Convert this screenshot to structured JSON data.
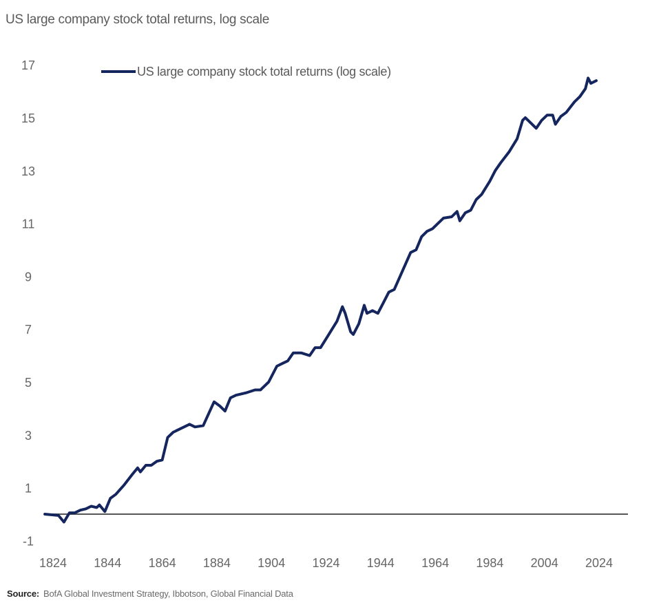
{
  "chart_data": {
    "type": "line",
    "title": "US large company stock total returns, log scale",
    "xlabel": "",
    "ylabel": "",
    "xlim": [
      1822,
      2035
    ],
    "ylim": [
      -1,
      17
    ],
    "x_ticks": [
      "1824",
      "1844",
      "1864",
      "1884",
      "1904",
      "1924",
      "1944",
      "1964",
      "1984",
      "2004",
      "2024"
    ],
    "y_ticks": [
      "17",
      "15",
      "13",
      "11",
      "9",
      "7",
      "5",
      "3",
      "1",
      "-1"
    ],
    "grid": false,
    "baseline": 0,
    "legend_position": "top",
    "series": [
      {
        "name": "US large company stock total returns (log scale)",
        "color": "#15265f",
        "points": [
          [
            1821,
            0.0
          ],
          [
            1826,
            -0.05
          ],
          [
            1828,
            -0.3
          ],
          [
            1830,
            0.05
          ],
          [
            1832,
            0.05
          ],
          [
            1834,
            0.15
          ],
          [
            1836,
            0.2
          ],
          [
            1838,
            0.3
          ],
          [
            1840,
            0.25
          ],
          [
            1841,
            0.35
          ],
          [
            1843,
            0.1
          ],
          [
            1845,
            0.6
          ],
          [
            1847,
            0.75
          ],
          [
            1850,
            1.1
          ],
          [
            1853,
            1.5
          ],
          [
            1855,
            1.75
          ],
          [
            1856,
            1.6
          ],
          [
            1858,
            1.85
          ],
          [
            1860,
            1.85
          ],
          [
            1862,
            2.0
          ],
          [
            1864,
            2.05
          ],
          [
            1866,
            2.9
          ],
          [
            1868,
            3.1
          ],
          [
            1872,
            3.3
          ],
          [
            1874,
            3.4
          ],
          [
            1876,
            3.3
          ],
          [
            1879,
            3.35
          ],
          [
            1881,
            3.8
          ],
          [
            1883,
            4.25
          ],
          [
            1885,
            4.1
          ],
          [
            1887,
            3.9
          ],
          [
            1889,
            4.4
          ],
          [
            1891,
            4.5
          ],
          [
            1895,
            4.6
          ],
          [
            1898,
            4.7
          ],
          [
            1900,
            4.7
          ],
          [
            1903,
            5.0
          ],
          [
            1906,
            5.6
          ],
          [
            1908,
            5.7
          ],
          [
            1910,
            5.8
          ],
          [
            1912,
            6.1
          ],
          [
            1915,
            6.1
          ],
          [
            1918,
            6.0
          ],
          [
            1920,
            6.3
          ],
          [
            1922,
            6.3
          ],
          [
            1925,
            6.8
          ],
          [
            1928,
            7.3
          ],
          [
            1930,
            7.85
          ],
          [
            1931,
            7.6
          ],
          [
            1933,
            6.9
          ],
          [
            1934,
            6.8
          ],
          [
            1936,
            7.2
          ],
          [
            1938,
            7.9
          ],
          [
            1939,
            7.6
          ],
          [
            1941,
            7.7
          ],
          [
            1943,
            7.6
          ],
          [
            1945,
            8.0
          ],
          [
            1947,
            8.4
          ],
          [
            1949,
            8.5
          ],
          [
            1952,
            9.2
          ],
          [
            1955,
            9.9
          ],
          [
            1957,
            10.0
          ],
          [
            1959,
            10.5
          ],
          [
            1961,
            10.7
          ],
          [
            1963,
            10.8
          ],
          [
            1965,
            11.0
          ],
          [
            1967,
            11.2
          ],
          [
            1970,
            11.25
          ],
          [
            1972,
            11.45
          ],
          [
            1973,
            11.1
          ],
          [
            1975,
            11.4
          ],
          [
            1977,
            11.5
          ],
          [
            1979,
            11.9
          ],
          [
            1981,
            12.1
          ],
          [
            1984,
            12.6
          ],
          [
            1986,
            13.0
          ],
          [
            1988,
            13.3
          ],
          [
            1991,
            13.7
          ],
          [
            1994,
            14.2
          ],
          [
            1996,
            14.9
          ],
          [
            1997,
            15.0
          ],
          [
            1999,
            14.8
          ],
          [
            2001,
            14.6
          ],
          [
            2003,
            14.9
          ],
          [
            2005,
            15.1
          ],
          [
            2007,
            15.1
          ],
          [
            2008,
            14.75
          ],
          [
            2010,
            15.05
          ],
          [
            2012,
            15.2
          ],
          [
            2015,
            15.6
          ],
          [
            2017,
            15.8
          ],
          [
            2019,
            16.1
          ],
          [
            2020,
            16.5
          ],
          [
            2021,
            16.3
          ],
          [
            2023,
            16.4
          ]
        ]
      }
    ]
  },
  "source": {
    "label": "Source:",
    "text": "BofA Global Investment Strategy, Ibbotson, Global Financial Data"
  }
}
